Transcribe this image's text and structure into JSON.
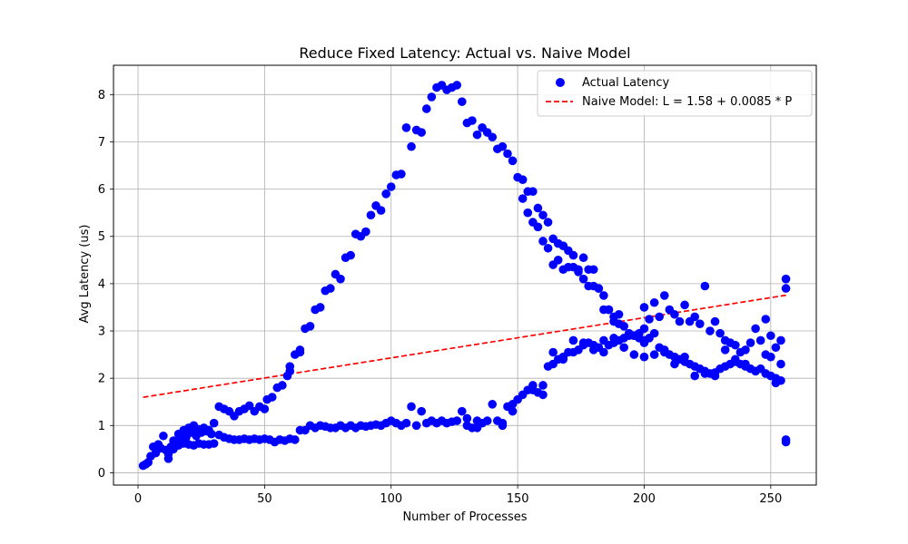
{
  "chart_data": {
    "type": "scatter",
    "title": "Reduce Fixed Latency: Actual vs. Naive Model",
    "xlabel": "Number of Processes",
    "ylabel": "Avg Latency (us)",
    "xlim": [
      -9.7,
      268
    ],
    "ylim": [
      -0.26,
      8.62
    ],
    "xticks": [
      0,
      50,
      100,
      150,
      200,
      250
    ],
    "yticks": [
      0,
      1,
      2,
      3,
      4,
      5,
      6,
      7,
      8
    ],
    "grid": true,
    "legend_position": "top-right",
    "colors": {
      "scatter": "#0000ff",
      "model": "#ff0000"
    },
    "series": [
      {
        "name": "Actual Latency",
        "kind": "scatter",
        "points": [
          [
            2,
            0.15
          ],
          [
            3,
            0.18
          ],
          [
            4,
            0.22
          ],
          [
            5,
            0.35
          ],
          [
            6,
            0.55
          ],
          [
            7,
            0.42
          ],
          [
            8,
            0.6
          ],
          [
            9,
            0.52
          ],
          [
            10,
            0.78
          ],
          [
            11,
            0.48
          ],
          [
            12,
            0.3
          ],
          [
            13,
            0.55
          ],
          [
            14,
            0.68
          ],
          [
            15,
            0.62
          ],
          [
            16,
            0.82
          ],
          [
            17,
            0.7
          ],
          [
            18,
            0.9
          ],
          [
            19,
            0.75
          ],
          [
            20,
            0.95
          ],
          [
            21,
            0.85
          ],
          [
            22,
            1.0
          ],
          [
            23,
            0.78
          ],
          [
            24,
            0.92
          ],
          [
            25,
            0.85
          ],
          [
            26,
            0.95
          ],
          [
            27,
            0.88
          ],
          [
            28,
            0.9
          ],
          [
            29,
            0.82
          ],
          [
            12,
            0.4
          ],
          [
            14,
            0.5
          ],
          [
            16,
            0.58
          ],
          [
            18,
            0.62
          ],
          [
            20,
            0.6
          ],
          [
            22,
            0.58
          ],
          [
            24,
            0.62
          ],
          [
            26,
            0.6
          ],
          [
            28,
            0.6
          ],
          [
            30,
            0.62
          ],
          [
            30,
            1.05
          ],
          [
            32,
            1.4
          ],
          [
            34,
            1.35
          ],
          [
            36,
            1.3
          ],
          [
            38,
            1.2
          ],
          [
            40,
            1.3
          ],
          [
            42,
            1.35
          ],
          [
            44,
            1.42
          ],
          [
            46,
            1.3
          ],
          [
            48,
            1.4
          ],
          [
            50,
            1.35
          ],
          [
            51,
            1.55
          ],
          [
            53,
            1.6
          ],
          [
            55,
            1.8
          ],
          [
            57,
            1.85
          ],
          [
            59,
            2.05
          ],
          [
            60,
            2.25
          ],
          [
            62,
            2.5
          ],
          [
            64,
            2.6
          ],
          [
            66,
            3.05
          ],
          [
            68,
            3.1
          ],
          [
            70,
            3.45
          ],
          [
            72,
            3.5
          ],
          [
            74,
            3.85
          ],
          [
            76,
            3.9
          ],
          [
            78,
            4.2
          ],
          [
            80,
            4.1
          ],
          [
            82,
            4.55
          ],
          [
            84,
            4.6
          ],
          [
            86,
            5.05
          ],
          [
            88,
            5.0
          ],
          [
            90,
            5.1
          ],
          [
            92,
            5.45
          ],
          [
            94,
            5.65
          ],
          [
            96,
            5.55
          ],
          [
            98,
            5.9
          ],
          [
            100,
            6.05
          ],
          [
            102,
            6.3
          ],
          [
            104,
            6.32
          ],
          [
            106,
            7.3
          ],
          [
            108,
            6.9
          ],
          [
            110,
            7.25
          ],
          [
            112,
            7.2
          ],
          [
            114,
            7.7
          ],
          [
            116,
            7.95
          ],
          [
            118,
            8.15
          ],
          [
            120,
            8.2
          ],
          [
            122,
            8.1
          ],
          [
            124,
            8.15
          ],
          [
            126,
            8.2
          ],
          [
            128,
            7.85
          ],
          [
            130,
            7.4
          ],
          [
            132,
            7.45
          ],
          [
            134,
            7.15
          ],
          [
            136,
            7.3
          ],
          [
            138,
            7.2
          ],
          [
            140,
            7.1
          ],
          [
            142,
            6.85
          ],
          [
            144,
            6.9
          ],
          [
            146,
            6.75
          ],
          [
            148,
            6.6
          ],
          [
            150,
            6.25
          ],
          [
            152,
            6.2
          ],
          [
            154,
            5.5
          ],
          [
            156,
            5.95
          ],
          [
            158,
            5.6
          ],
          [
            160,
            5.45
          ],
          [
            162,
            5.3
          ],
          [
            164,
            4.95
          ],
          [
            166,
            4.85
          ],
          [
            168,
            4.8
          ],
          [
            170,
            4.7
          ],
          [
            172,
            4.6
          ],
          [
            174,
            4.3
          ],
          [
            176,
            4.55
          ],
          [
            178,
            4.3
          ],
          [
            180,
            3.95
          ],
          [
            182,
            3.9
          ],
          [
            184,
            3.75
          ],
          [
            186,
            3.45
          ],
          [
            188,
            3.2
          ],
          [
            190,
            3.35
          ],
          [
            192,
            3.1
          ],
          [
            194,
            2.95
          ],
          [
            196,
            2.9
          ],
          [
            198,
            2.85
          ],
          [
            200,
            2.75
          ],
          [
            152,
            5.8
          ],
          [
            154,
            5.95
          ],
          [
            156,
            5.3
          ],
          [
            158,
            5.2
          ],
          [
            160,
            4.9
          ],
          [
            162,
            4.75
          ],
          [
            164,
            4.4
          ],
          [
            166,
            4.5
          ],
          [
            168,
            4.3
          ],
          [
            170,
            4.35
          ],
          [
            172,
            4.35
          ],
          [
            174,
            4.25
          ],
          [
            176,
            4.1
          ],
          [
            178,
            3.95
          ],
          [
            180,
            4.3
          ],
          [
            182,
            3.9
          ],
          [
            184,
            3.45
          ],
          [
            186,
            3.45
          ],
          [
            188,
            3.3
          ],
          [
            190,
            3.15
          ],
          [
            32,
            0.8
          ],
          [
            34,
            0.75
          ],
          [
            36,
            0.72
          ],
          [
            38,
            0.7
          ],
          [
            40,
            0.7
          ],
          [
            42,
            0.72
          ],
          [
            44,
            0.7
          ],
          [
            46,
            0.72
          ],
          [
            48,
            0.7
          ],
          [
            50,
            0.72
          ],
          [
            52,
            0.7
          ],
          [
            54,
            0.65
          ],
          [
            56,
            0.7
          ],
          [
            58,
            0.68
          ],
          [
            60,
            0.72
          ],
          [
            62,
            0.7
          ],
          [
            64,
            0.9
          ],
          [
            66,
            0.9
          ],
          [
            68,
            1.0
          ],
          [
            70,
            0.95
          ],
          [
            72,
            1.0
          ],
          [
            74,
            0.98
          ],
          [
            76,
            0.95
          ],
          [
            78,
            0.95
          ],
          [
            80,
            1.0
          ],
          [
            82,
            0.95
          ],
          [
            84,
            1.0
          ],
          [
            86,
            0.95
          ],
          [
            88,
            1.0
          ],
          [
            90,
            0.98
          ],
          [
            92,
            1.0
          ],
          [
            94,
            1.02
          ],
          [
            96,
            1.0
          ],
          [
            98,
            1.05
          ],
          [
            100,
            1.1
          ],
          [
            102,
            1.05
          ],
          [
            104,
            1.0
          ],
          [
            106,
            1.05
          ],
          [
            108,
            1.4
          ],
          [
            110,
            1.0
          ],
          [
            112,
            1.3
          ],
          [
            114,
            1.05
          ],
          [
            116,
            1.1
          ],
          [
            118,
            1.05
          ],
          [
            120,
            1.1
          ],
          [
            122,
            1.05
          ],
          [
            124,
            1.08
          ],
          [
            126,
            1.1
          ],
          [
            128,
            1.3
          ],
          [
            130,
            1.0
          ],
          [
            132,
            0.95
          ],
          [
            134,
            1.1
          ],
          [
            136,
            1.05
          ],
          [
            138,
            1.1
          ],
          [
            140,
            1.45
          ],
          [
            142,
            1.1
          ],
          [
            144,
            1.05
          ],
          [
            146,
            1.4
          ],
          [
            148,
            1.45
          ],
          [
            150,
            1.55
          ],
          [
            152,
            1.65
          ],
          [
            154,
            1.75
          ],
          [
            156,
            1.85
          ],
          [
            158,
            1.7
          ],
          [
            160,
            1.65
          ],
          [
            162,
            2.25
          ],
          [
            164,
            2.3
          ],
          [
            166,
            2.4
          ],
          [
            168,
            2.45
          ],
          [
            170,
            2.55
          ],
          [
            172,
            2.55
          ],
          [
            174,
            2.6
          ],
          [
            176,
            2.7
          ],
          [
            178,
            2.75
          ],
          [
            180,
            2.7
          ],
          [
            182,
            2.65
          ],
          [
            184,
            2.8
          ],
          [
            186,
            2.7
          ],
          [
            188,
            2.85
          ],
          [
            190,
            2.8
          ],
          [
            192,
            2.85
          ],
          [
            194,
            2.9
          ],
          [
            196,
            2.9
          ],
          [
            198,
            2.95
          ],
          [
            200,
            3.05
          ],
          [
            60,
            2.15
          ],
          [
            64,
            2.55
          ],
          [
            130,
            1.15
          ],
          [
            134,
            0.95
          ],
          [
            144,
            1.0
          ],
          [
            148,
            1.3
          ],
          [
            156,
            1.75
          ],
          [
            160,
            1.85
          ],
          [
            164,
            2.55
          ],
          [
            168,
            2.4
          ],
          [
            172,
            2.8
          ],
          [
            176,
            2.75
          ],
          [
            180,
            2.6
          ],
          [
            184,
            2.55
          ],
          [
            188,
            2.75
          ],
          [
            192,
            2.65
          ],
          [
            196,
            2.5
          ],
          [
            200,
            2.45
          ],
          [
            200,
            3.5
          ],
          [
            202,
            3.25
          ],
          [
            204,
            3.6
          ],
          [
            206,
            3.3
          ],
          [
            208,
            3.75
          ],
          [
            210,
            3.45
          ],
          [
            212,
            3.35
          ],
          [
            214,
            3.2
          ],
          [
            216,
            3.55
          ],
          [
            218,
            3.2
          ],
          [
            220,
            3.3
          ],
          [
            222,
            3.15
          ],
          [
            224,
            3.95
          ],
          [
            226,
            3.0
          ],
          [
            228,
            3.2
          ],
          [
            230,
            2.95
          ],
          [
            232,
            2.8
          ],
          [
            234,
            2.75
          ],
          [
            236,
            2.7
          ],
          [
            238,
            2.55
          ],
          [
            240,
            2.6
          ],
          [
            242,
            2.75
          ],
          [
            244,
            3.05
          ],
          [
            246,
            2.8
          ],
          [
            248,
            3.25
          ],
          [
            250,
            2.9
          ],
          [
            252,
            2.65
          ],
          [
            254,
            2.8
          ],
          [
            256,
            4.1
          ],
          [
            256,
            3.9
          ],
          [
            200,
            2.8
          ],
          [
            202,
            2.85
          ],
          [
            204,
            2.5
          ],
          [
            206,
            2.65
          ],
          [
            208,
            2.55
          ],
          [
            210,
            2.5
          ],
          [
            212,
            2.45
          ],
          [
            214,
            2.4
          ],
          [
            216,
            2.35
          ],
          [
            218,
            2.3
          ],
          [
            220,
            2.25
          ],
          [
            222,
            2.2
          ],
          [
            224,
            2.15
          ],
          [
            226,
            2.1
          ],
          [
            228,
            2.12
          ],
          [
            230,
            2.2
          ],
          [
            232,
            2.25
          ],
          [
            234,
            2.3
          ],
          [
            236,
            2.35
          ],
          [
            238,
            2.3
          ],
          [
            240,
            2.25
          ],
          [
            242,
            2.2
          ],
          [
            244,
            2.15
          ],
          [
            246,
            2.2
          ],
          [
            248,
            2.1
          ],
          [
            250,
            2.05
          ],
          [
            252,
            2.0
          ],
          [
            254,
            1.95
          ],
          [
            256,
            0.7
          ],
          [
            256,
            0.65
          ],
          [
            204,
            2.95
          ],
          [
            208,
            2.6
          ],
          [
            212,
            2.3
          ],
          [
            216,
            2.45
          ],
          [
            220,
            2.05
          ],
          [
            224,
            2.1
          ],
          [
            228,
            2.05
          ],
          [
            232,
            2.6
          ],
          [
            236,
            2.4
          ],
          [
            240,
            2.3
          ],
          [
            244,
            2.15
          ],
          [
            248,
            2.5
          ],
          [
            250,
            2.45
          ],
          [
            252,
            1.9
          ],
          [
            254,
            2.3
          ]
        ]
      },
      {
        "name": "Naive Model: L = 1.58 + 0.0085 * P",
        "kind": "line",
        "style": "dashed",
        "points": [
          [
            2,
            1.597
          ],
          [
            256,
            3.756
          ]
        ]
      }
    ]
  }
}
